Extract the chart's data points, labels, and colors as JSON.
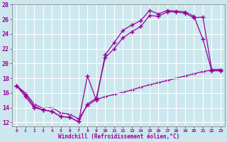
{
  "xlabel": "Windchill (Refroidissement éolien,°C)",
  "ylabel": "",
  "bg_color": "#cce8ee",
  "grid_color": "#ffffff",
  "line_color": "#990099",
  "xlim": [
    -0.5,
    23.5
  ],
  "ylim": [
    11.5,
    28.0
  ],
  "xticks": [
    0,
    1,
    2,
    3,
    4,
    5,
    6,
    7,
    8,
    9,
    10,
    11,
    12,
    13,
    14,
    15,
    16,
    17,
    18,
    19,
    20,
    21,
    22,
    23
  ],
  "yticks": [
    12,
    14,
    16,
    18,
    20,
    22,
    24,
    26,
    28
  ],
  "series1_x": [
    0,
    1,
    2,
    3,
    4,
    5,
    6,
    7,
    8,
    9,
    10,
    11,
    12,
    13,
    14,
    15,
    16,
    17,
    18,
    19,
    20,
    21,
    22,
    23
  ],
  "series1_y": [
    17.0,
    15.8,
    14.2,
    13.7,
    13.5,
    12.8,
    12.7,
    12.1,
    18.3,
    15.0,
    21.2,
    22.8,
    24.5,
    25.2,
    25.8,
    27.2,
    26.7,
    27.2,
    27.1,
    27.0,
    26.4,
    23.3,
    19.0,
    19.0
  ],
  "series2_x": [
    0,
    1,
    2,
    3,
    4,
    5,
    6,
    7,
    8,
    9,
    10,
    11,
    12,
    13,
    14,
    15,
    16,
    17,
    18,
    19,
    20,
    21,
    22,
    23
  ],
  "series2_y": [
    17.0,
    15.5,
    14.0,
    13.7,
    13.5,
    12.8,
    12.7,
    12.1,
    14.5,
    15.3,
    20.8,
    22.0,
    23.5,
    24.3,
    25.0,
    26.5,
    26.4,
    27.0,
    27.0,
    26.8,
    26.2,
    26.3,
    19.2,
    19.1
  ],
  "series3_x": [
    0,
    1,
    2,
    3,
    4,
    5,
    6,
    7,
    8,
    9,
    10,
    11,
    12,
    13,
    14,
    15,
    16,
    17,
    18,
    19,
    20,
    21,
    22,
    23
  ],
  "series3_y": [
    17.0,
    16.0,
    14.5,
    13.9,
    14.0,
    13.3,
    13.1,
    12.5,
    14.3,
    15.1,
    15.5,
    15.8,
    16.1,
    16.4,
    16.8,
    17.1,
    17.4,
    17.7,
    18.0,
    18.3,
    18.6,
    18.9,
    19.1,
    19.2
  ]
}
